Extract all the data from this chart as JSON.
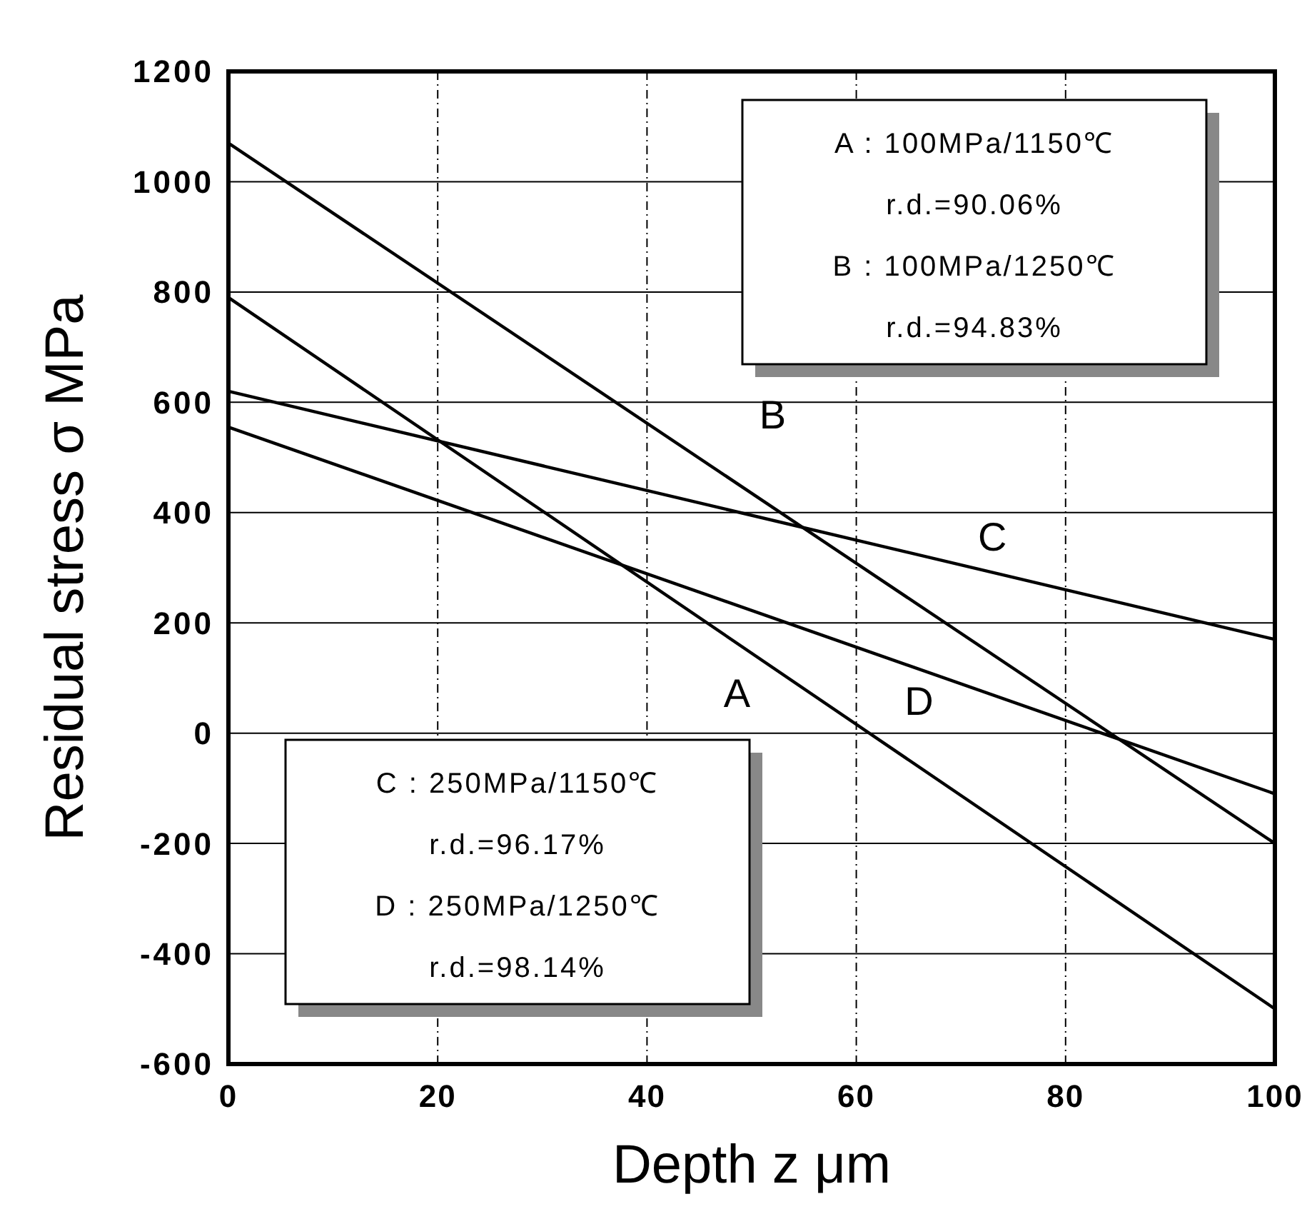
{
  "chart_data": {
    "type": "line",
    "xlabel": "Depth z  μm",
    "ylabel": "Residual stress σ  MPa",
    "xlim": [
      0,
      100
    ],
    "xticks": [
      0,
      20,
      40,
      60,
      80,
      100
    ],
    "ylim": [
      -600,
      1200
    ],
    "yticks": [
      -600,
      -400,
      -200,
      0,
      200,
      400,
      600,
      800,
      1000,
      1200
    ],
    "grid": true,
    "line_style": "solid",
    "marker": "none",
    "series": [
      {
        "name": "A",
        "color": "#000000",
        "values": [
          790,
          -500
        ]
      },
      {
        "name": "B",
        "color": "#000000",
        "values": [
          1070,
          -200
        ]
      },
      {
        "name": "C",
        "color": "#000000",
        "values": [
          620,
          170
        ]
      },
      {
        "name": "D",
        "color": "#000000",
        "values": [
          555,
          -110
        ]
      }
    ],
    "x": [
      0,
      100
    ],
    "annotations": [
      "A : 100MPa/1150℃",
      "r.d.=90.06%",
      "B : 100MPa/1250℃",
      "r.d.=94.83%",
      "C : 250MPa/1150℃",
      "r.d.=96.17%",
      "D : 250MPa/1250℃",
      "r.d.=98.14%"
    ]
  }
}
